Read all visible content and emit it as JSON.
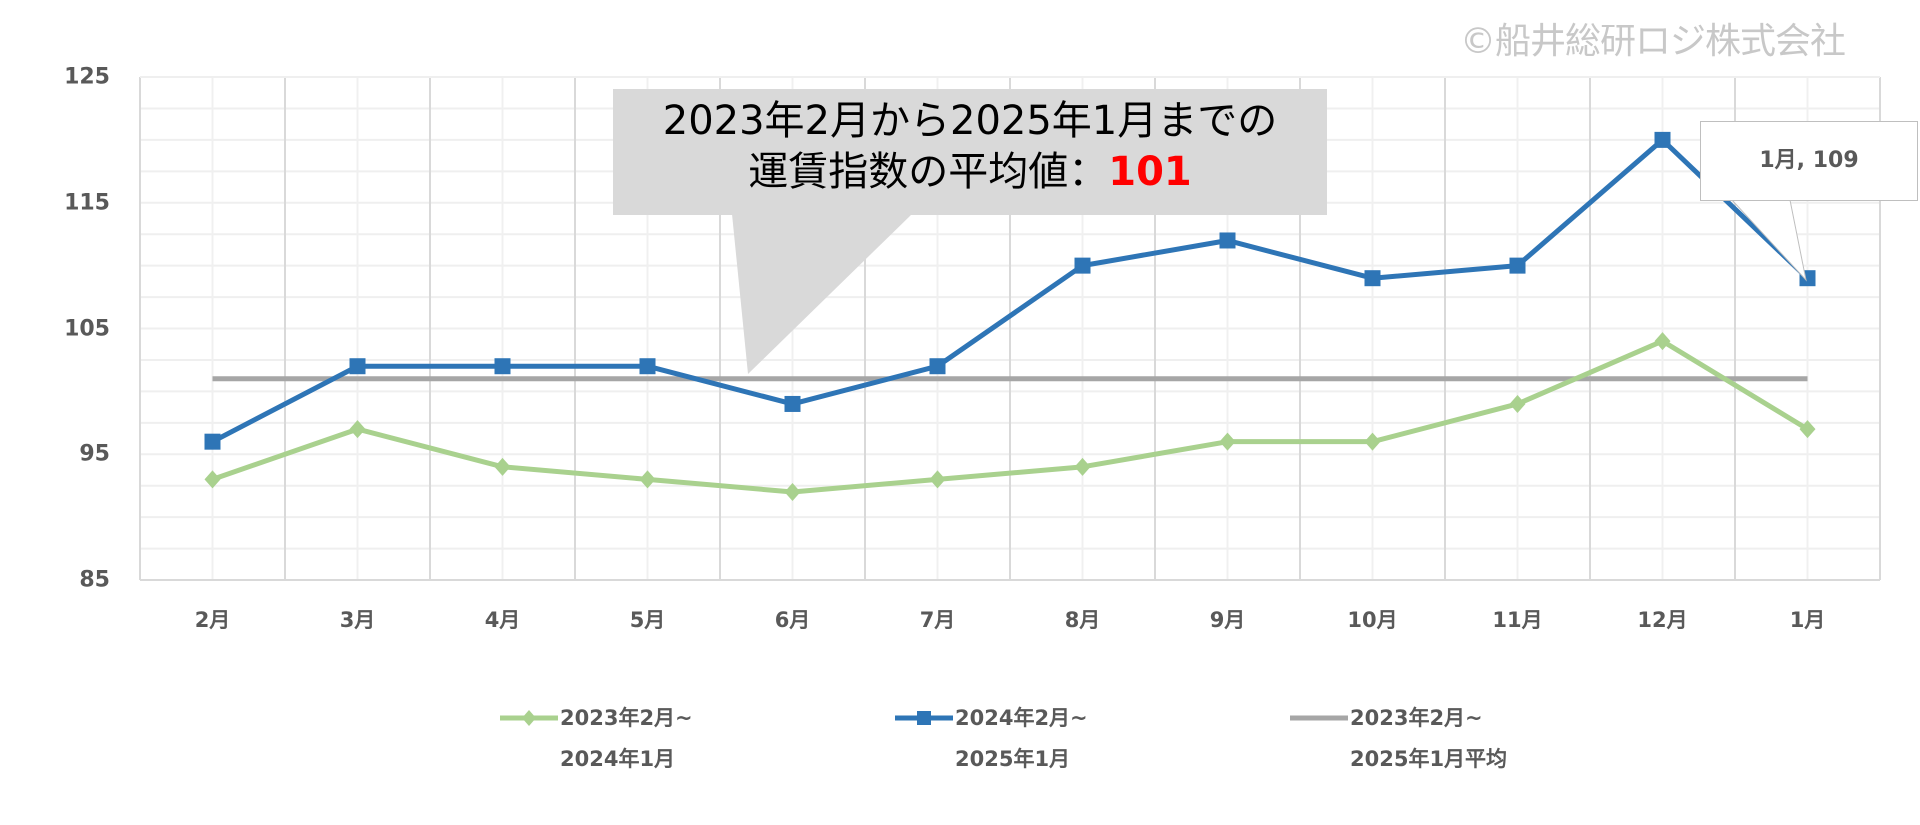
{
  "watermark": "©船井総研ロジ株式会社",
  "callout": {
    "line1": "2023年2月から2025年1月までの",
    "line2_prefix": "運賃指数の平均値：",
    "line2_value": "101"
  },
  "data_label": "1月, 109",
  "colors": {
    "series_2023": "#a9d18e",
    "series_2024": "#2e75b6",
    "average": "#a6a6a6",
    "callout_bg": "#d9d9d9",
    "highlight": "#ff0000",
    "axis_text": "#595959"
  },
  "legend": [
    {
      "line1": "2023年2月~",
      "line2": "2024年1月"
    },
    {
      "line1": "2024年2月~",
      "line2": "2025年1月"
    },
    {
      "line1": "2023年2月~",
      "line2": "2025年1月平均"
    }
  ],
  "y_ticks": [
    "125",
    "115",
    "105",
    "95",
    "85"
  ],
  "x_ticks": [
    "2月",
    "3月",
    "4月",
    "5月",
    "6月",
    "7月",
    "8月",
    "9月",
    "10月",
    "11月",
    "12月",
    "1月"
  ],
  "chart_data": {
    "type": "line",
    "title": "",
    "xlabel": "",
    "ylabel": "",
    "ylim": [
      85,
      125
    ],
    "y_ticks": [
      85,
      95,
      105,
      115,
      125
    ],
    "grid": true,
    "legend_position": "bottom",
    "categories": [
      "2月",
      "3月",
      "4月",
      "5月",
      "6月",
      "7月",
      "8月",
      "9月",
      "10月",
      "11月",
      "12月",
      "1月"
    ],
    "series": [
      {
        "name": "2023年2月~2024年1月",
        "marker": "diamond",
        "color": "#a9d18e",
        "values": [
          93,
          97,
          94,
          93,
          92,
          93,
          94,
          96,
          96,
          99,
          104,
          97
        ]
      },
      {
        "name": "2024年2月~2025年1月",
        "marker": "square",
        "color": "#2e75b6",
        "values": [
          96,
          102,
          102,
          102,
          99,
          102,
          110,
          112,
          109,
          110,
          120,
          109
        ]
      },
      {
        "name": "2023年2月~2025年1月平均",
        "marker": "none",
        "color": "#a6a6a6",
        "values": [
          101,
          101,
          101,
          101,
          101,
          101,
          101,
          101,
          101,
          101,
          101,
          101
        ]
      }
    ],
    "annotations": [
      {
        "text": "2023年2月から2025年1月までの運賃指数の平均値：101",
        "type": "callout"
      },
      {
        "text": "1月, 109",
        "type": "data-label",
        "series": "2024年2月~2025年1月",
        "category": "1月"
      }
    ]
  }
}
